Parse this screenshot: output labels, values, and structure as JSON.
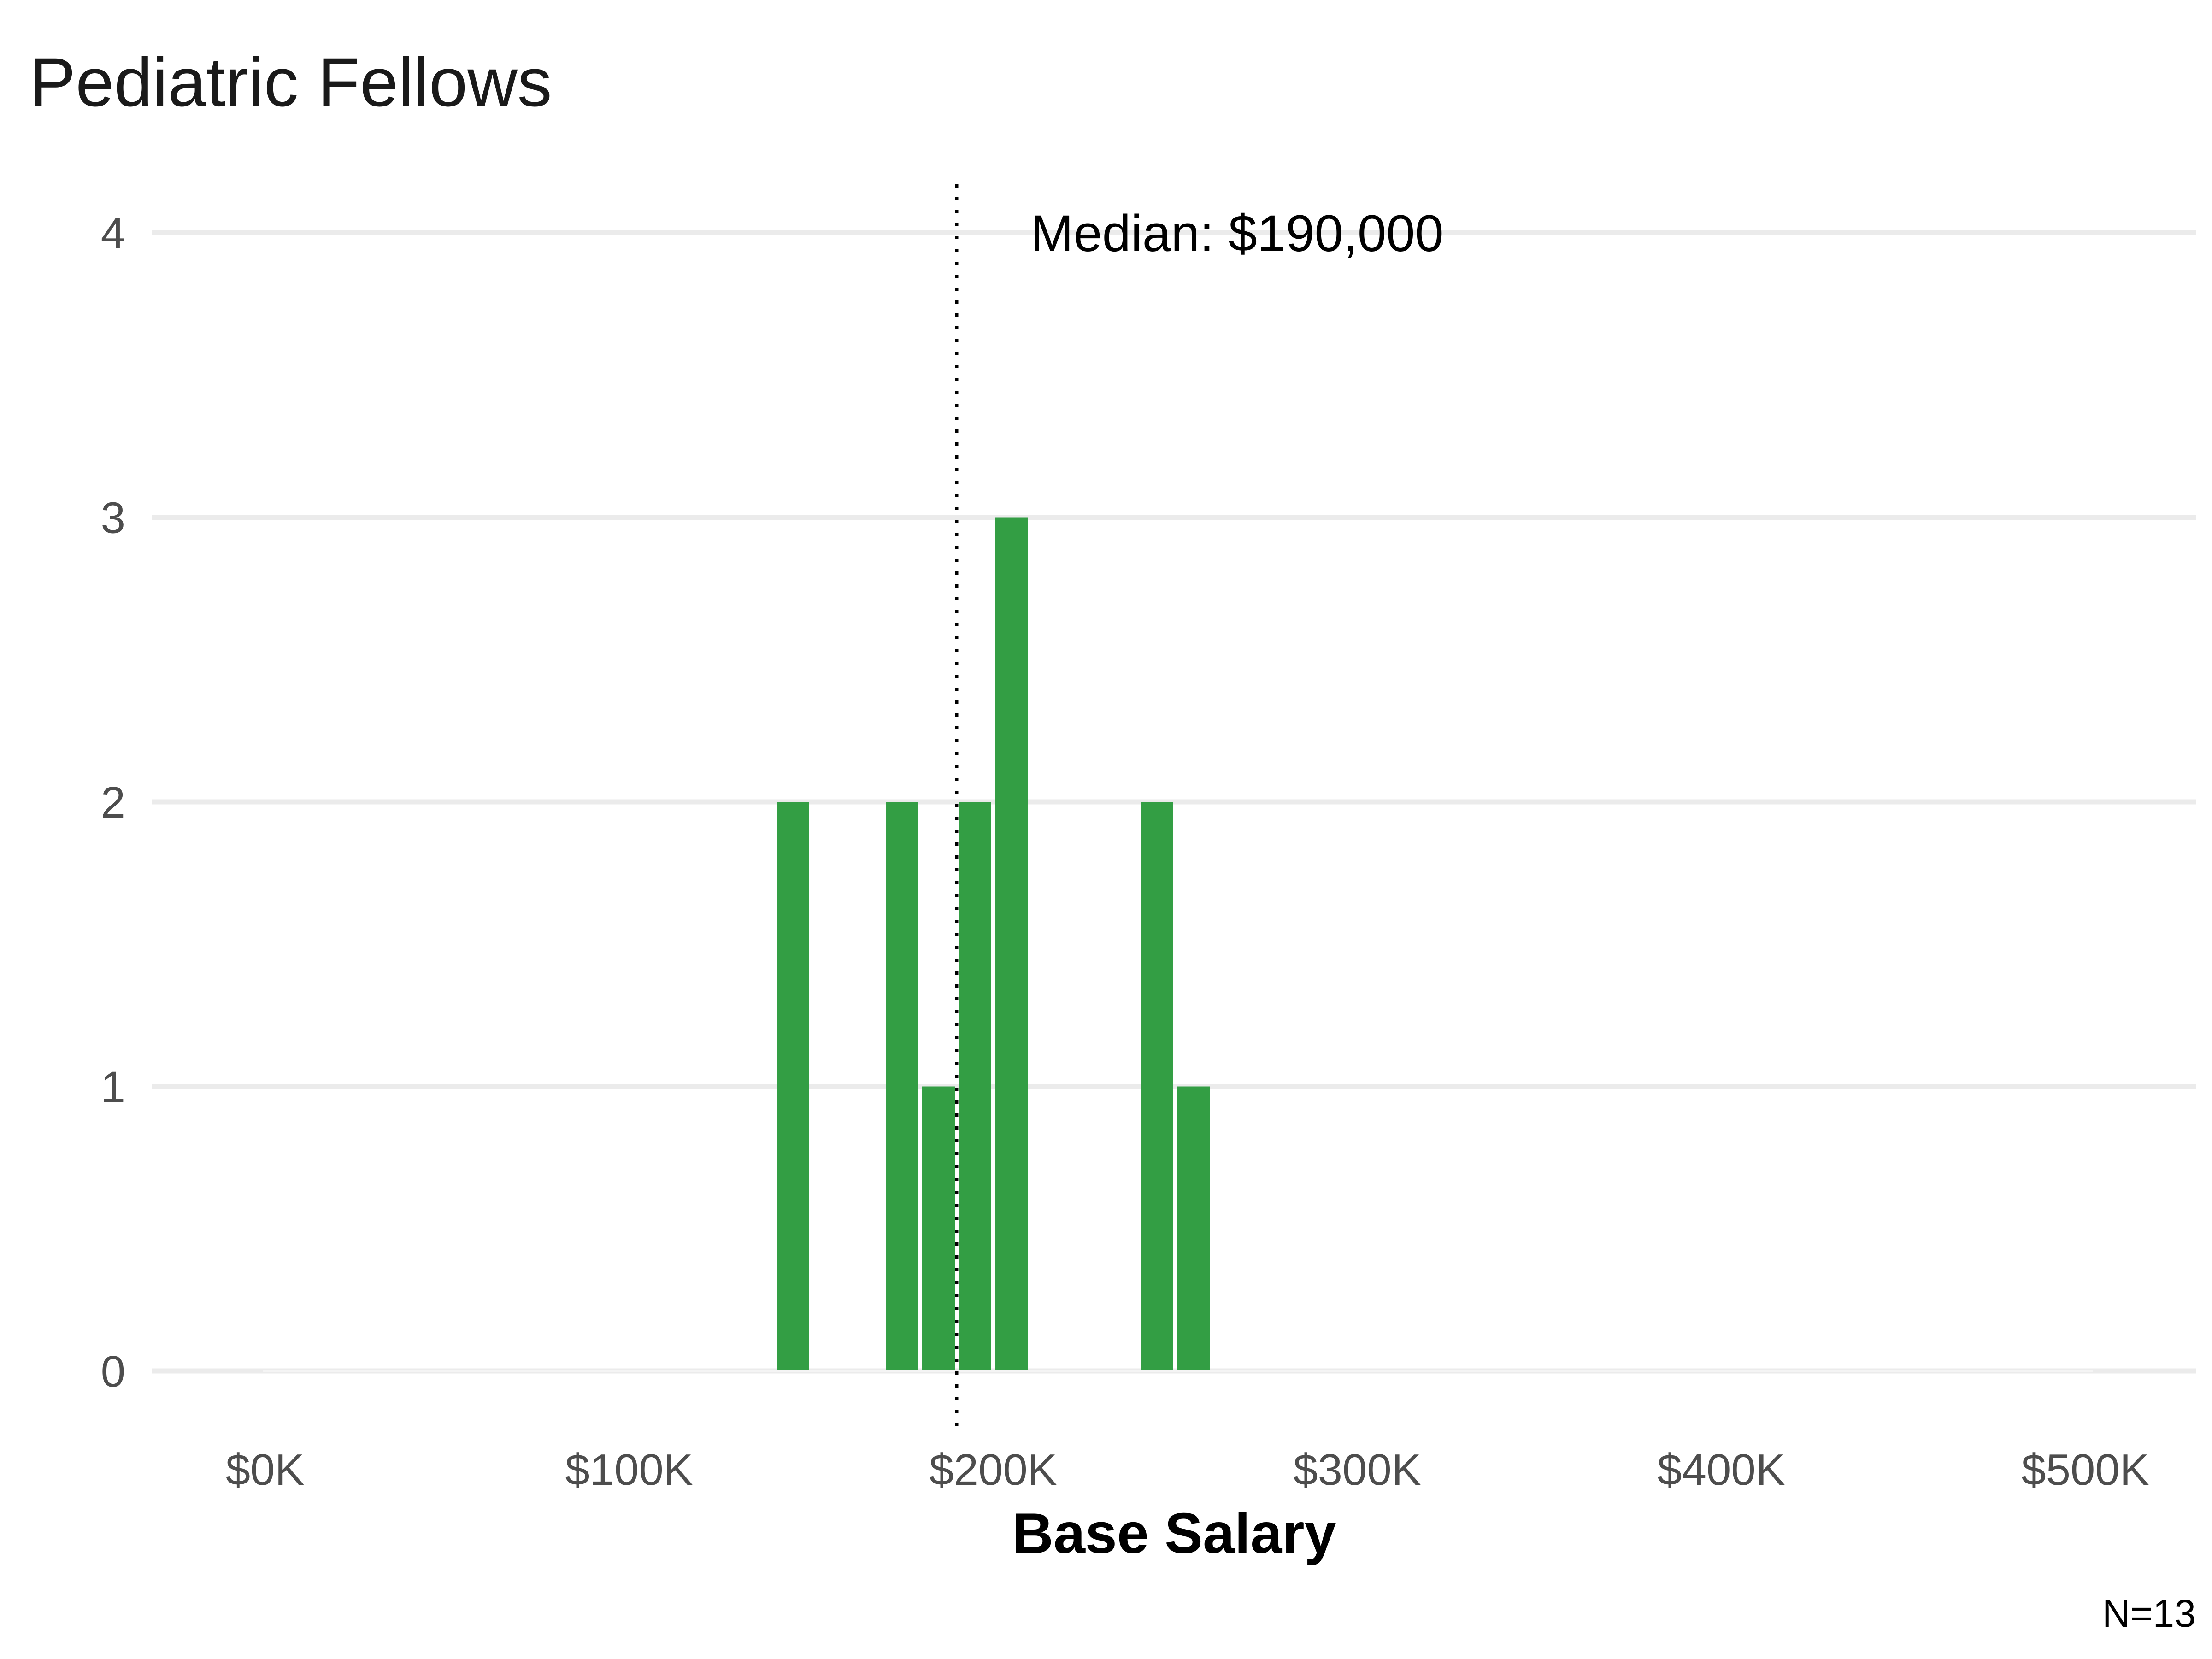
{
  "chart_data": {
    "type": "bar",
    "title": "Pediatric Fellows",
    "xlabel": "Base Salary",
    "ylabel": "",
    "x_tick_labels": [
      "$0K",
      "$100K",
      "$200K",
      "$300K",
      "$400K",
      "$500K"
    ],
    "x_ticks": [
      0,
      100000,
      200000,
      300000,
      400000,
      500000
    ],
    "y_ticks": [
      0,
      1,
      2,
      3,
      4
    ],
    "xlim": [
      -25000,
      535000
    ],
    "ylim": [
      0,
      4.2
    ],
    "bin_width": 10000,
    "bins": [
      {
        "x": 145000,
        "count": 2
      },
      {
        "x": 175000,
        "count": 2
      },
      {
        "x": 185000,
        "count": 1
      },
      {
        "x": 195000,
        "count": 2
      },
      {
        "x": 205000,
        "count": 3
      },
      {
        "x": 245000,
        "count": 2
      },
      {
        "x": 255000,
        "count": 1
      }
    ],
    "median": 190000,
    "median_label": "Median: $190,000",
    "caption": "N=13",
    "grid": true,
    "bar_color": "#339e44",
    "grid_color": "#ebebeb"
  }
}
